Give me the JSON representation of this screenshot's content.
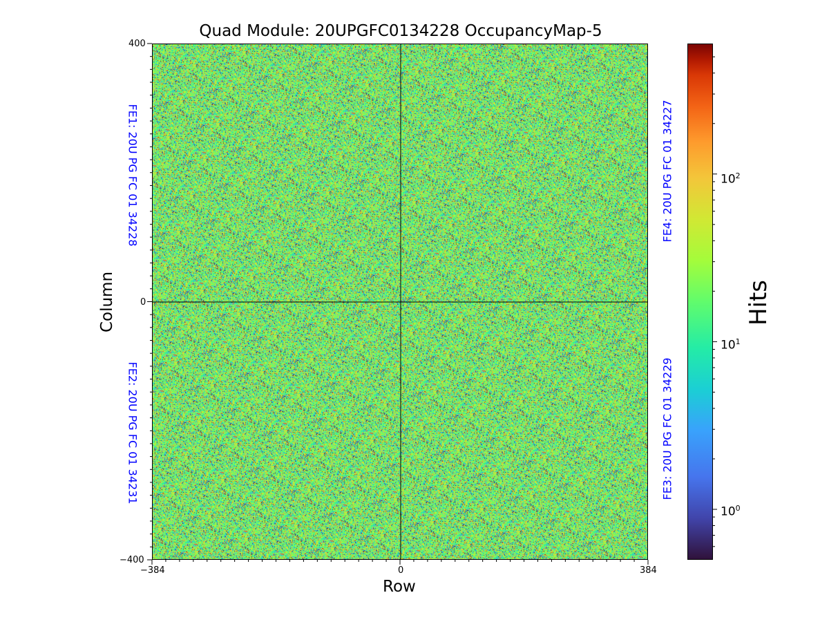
{
  "chart_data": {
    "type": "heatmap",
    "title": "Quad Module: 20UPGFC0134228 OccupancyMap-5",
    "xlabel": "Row",
    "ylabel": "Column",
    "xlim": [
      -384,
      384
    ],
    "ylim": [
      -400,
      400
    ],
    "x_ticks": [
      "−384",
      "0",
      "384"
    ],
    "y_ticks": [
      "400",
      "0",
      "−400"
    ],
    "colorbar": {
      "label": "Hits",
      "scale": "log",
      "range": [
        0.5,
        600
      ],
      "colormap": "turbo",
      "ticks": [
        {
          "base": "10",
          "exp": "0",
          "value": 1
        },
        {
          "base": "10",
          "exp": "1",
          "value": 10
        },
        {
          "base": "10",
          "exp": "2",
          "value": 100
        }
      ]
    },
    "annotations": {
      "fe1": "FE1: 20U PG FC 01 34228",
      "fe2": "FE2: 20U PG FC 01 34231",
      "fe3": "FE3: 20U PG FC 01 34229",
      "fe4": "FE4: 20U PG FC 01 34227"
    },
    "typical_hits": 20,
    "divider_lines": {
      "x": 0,
      "y": 0
    }
  }
}
